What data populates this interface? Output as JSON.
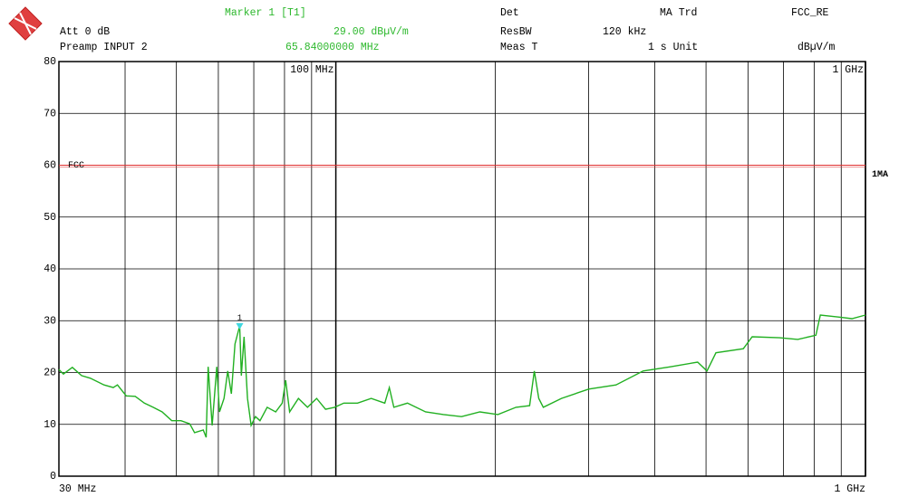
{
  "header": {
    "marker_title": "Marker 1 [T1]",
    "marker_level": "29.00 dBµV/m",
    "marker_freq": "65.84000000 MHz",
    "att": "Att 0 dB",
    "preamp": "Preamp INPUT 2",
    "det": "Det",
    "det_value": "MA Trd",
    "resbw": "ResBW",
    "resbw_value": "120 kHz",
    "meas": "Meas T",
    "meas_value": "1 s Unit",
    "unit": "dBµV/m",
    "transducer": "FCC_RE"
  },
  "chart_data": {
    "type": "line",
    "xscale": "log",
    "grid": true,
    "xlim": [
      30,
      1000
    ],
    "ylim": [
      0,
      80
    ],
    "yticks": [
      0,
      10,
      20,
      30,
      40,
      50,
      60,
      70,
      80
    ],
    "xticks": [
      {
        "value": 30,
        "label": "30 MHz"
      },
      {
        "value": 1000,
        "label": "1 GHz"
      }
    ],
    "xticks_top": [
      {
        "value": 100,
        "label": "100 MHz"
      },
      {
        "value": 1000,
        "label": "1 GHz"
      }
    ],
    "xgrid": [
      40,
      50,
      60,
      70,
      80,
      90,
      100,
      200,
      300,
      400,
      500,
      600,
      700,
      800,
      900
    ],
    "limit_line": {
      "label": "FCC",
      "value": 60,
      "color": "#e03030"
    },
    "trace_label": "1MA",
    "marker": {
      "label": "1",
      "x": 65.84,
      "y": 29,
      "color": "#40d8e0"
    },
    "series": [
      {
        "color": "#22b022",
        "x": [
          30,
          30.6,
          31.8,
          33.1,
          34.4,
          36.5,
          38.0,
          38.7,
          40.2,
          41.8,
          43.5,
          45.2,
          47.0,
          49.0,
          51.0,
          53.0,
          54.1,
          56.2,
          56.9,
          57.4,
          58.4,
          59.6,
          60.3,
          61.5,
          62.5,
          63.5,
          64.5,
          65.84,
          66.3,
          67.1,
          68.1,
          69.2,
          70.5,
          71.9,
          74.2,
          77.0,
          79.2,
          80.4,
          81.8,
          85.0,
          88.4,
          92.0,
          95.6,
          99.5,
          103.5,
          109.9,
          116.6,
          123.7,
          126.2,
          128.7,
          136.5,
          147.7,
          159.7,
          172.8,
          187.0,
          202.3,
          218.9,
          232.2,
          237.0,
          241.6,
          246.4,
          266.6,
          300.2,
          338.0,
          380.4,
          428.2,
          482.0,
          502,
          522,
          588,
          611,
          688,
          745,
          806,
          822,
          889,
          943,
          1000
        ],
        "values": [
          20.6,
          19.7,
          21,
          19.4,
          18.9,
          17.6,
          17.1,
          17.6,
          15.5,
          15.4,
          14.1,
          13.3,
          12.4,
          10.7,
          10.7,
          10.1,
          8.4,
          8.9,
          7.5,
          21.1,
          9.8,
          21.1,
          12.4,
          15,
          20.3,
          15.9,
          25.5,
          29,
          19.4,
          26.9,
          15,
          9.8,
          11.5,
          10.7,
          13.3,
          12.4,
          14.1,
          18.5,
          12.4,
          15,
          13.3,
          15,
          12.9,
          13.3,
          14.1,
          14.1,
          15,
          14.1,
          17.1,
          13.3,
          14.1,
          12.4,
          11.9,
          11.5,
          12.4,
          11.9,
          13.3,
          13.6,
          20.3,
          15,
          13.3,
          15,
          16.8,
          17.6,
          20.3,
          21.1,
          22,
          20.3,
          23.8,
          24.6,
          26.9,
          26.7,
          26.4,
          27.2,
          31.1,
          30.7,
          30.4,
          31.1
        ]
      }
    ]
  }
}
